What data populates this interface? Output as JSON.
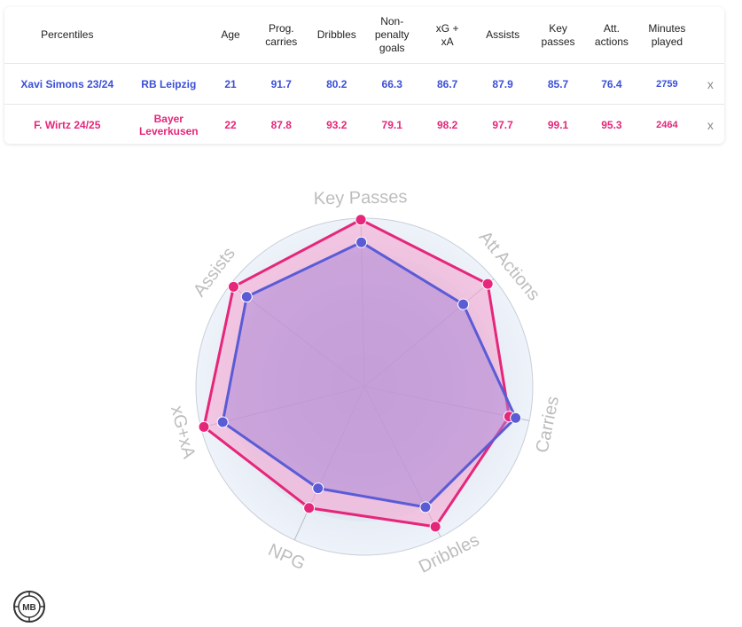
{
  "table": {
    "headers": [
      "Percentiles",
      "Age",
      "Prog.\ncarries",
      "Dribbles",
      "Non-\npenalty\ngoals",
      "xG +\nxA",
      "Assists",
      "Key\npasses",
      "Att.\nactions",
      "Minutes\nplayed"
    ],
    "rows": [
      {
        "player": "Xavi Simons 23/24",
        "team": "RB Leipzig",
        "age": "21",
        "prog_carries": "91.7",
        "dribbles": "80.2",
        "npg": "66.3",
        "xgxa": "86.7",
        "assists": "87.9",
        "key_passes": "85.7",
        "att_actions": "76.4",
        "minutes": "2759",
        "remove": "x"
      },
      {
        "player": "F. Wirtz 24/25",
        "team": "Bayer Leverkusen",
        "age": "22",
        "prog_carries": "87.8",
        "dribbles": "93.2",
        "npg": "79.1",
        "xgxa": "98.2",
        "assists": "97.7",
        "key_passes": "99.1",
        "att_actions": "95.3",
        "minutes": "2464",
        "remove": "x"
      }
    ]
  },
  "chart_data": {
    "type": "radar",
    "axes": [
      "Key Passes",
      "Att Actions",
      "Carries",
      "Dribbles",
      "NPG",
      "xG+xA",
      "Assists"
    ],
    "range": [
      0,
      100
    ],
    "series": [
      {
        "name": "F. Wirtz 24/25",
        "color": "#e5267a",
        "values": [
          99.1,
          95.3,
          87.8,
          93.2,
          79.1,
          98.2,
          97.7
        ]
      },
      {
        "name": "Xavi Simons 23/24",
        "color": "#5b5bd6",
        "values": [
          85.7,
          76.4,
          91.7,
          80.2,
          66.3,
          86.7,
          87.9
        ]
      }
    ]
  },
  "logo": {
    "text": "MB"
  }
}
